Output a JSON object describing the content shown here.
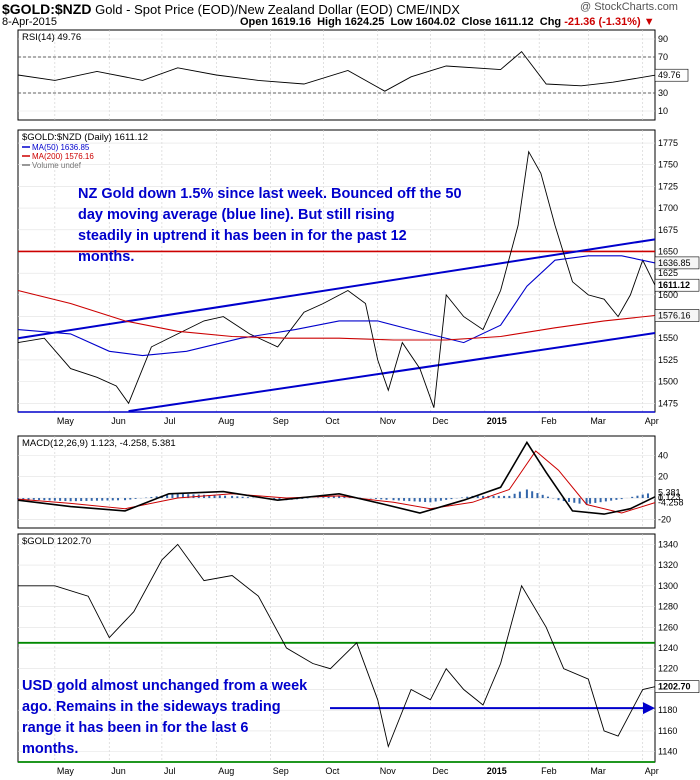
{
  "header": {
    "symbol": "$GOLD:$NZD",
    "description": "Gold - Spot Price (EOD)/New Zealand Dollar (EOD)",
    "exchange": "CME/INDX",
    "date": "8-Apr-2015",
    "open_label": "Open",
    "open": "1619.16",
    "high_label": "High",
    "high": "1624.25",
    "low_label": "Low",
    "low": "1604.02",
    "close_label": "Close",
    "close": "1611.12",
    "chg_label": "Chg",
    "chg": "-21.36 (-1.31%)",
    "brand": "@ StockCharts.com"
  },
  "x_axis": {
    "months": [
      "May",
      "Jun",
      "Jul",
      "Aug",
      "Sep",
      "Oct",
      "Nov",
      "Dec",
      "2015",
      "Feb",
      "Mar",
      "Apr"
    ]
  },
  "chart_data": [
    {
      "type": "line",
      "title": "RSI(14) 49.76",
      "ylim": [
        0,
        100
      ],
      "yticks": [
        10,
        30,
        49.76,
        70,
        90
      ],
      "ytick_labels": [
        "10",
        "30",
        "49.76",
        "70",
        "90"
      ],
      "reference_lines": [
        30,
        70
      ],
      "series": [
        {
          "name": "RSI(14)",
          "color": "#000000",
          "x": [
            "2014-04-10",
            "2014-05-01",
            "2014-05-25",
            "2014-06-20",
            "2014-07-10",
            "2014-08-01",
            "2014-08-25",
            "2014-09-20",
            "2014-10-15",
            "2014-11-05",
            "2014-11-20",
            "2014-12-10",
            "2015-01-10",
            "2015-01-22",
            "2015-02-05",
            "2015-02-25",
            "2015-03-15",
            "2015-04-08"
          ],
          "values": [
            50,
            44,
            54,
            44,
            58,
            50,
            44,
            40,
            55,
            32,
            48,
            60,
            56,
            76,
            40,
            38,
            42,
            49.76
          ]
        }
      ]
    },
    {
      "type": "line",
      "title": "$GOLD:$NZD (Daily) 1611.12",
      "ylim": [
        1465,
        1790
      ],
      "yticks": [
        1475,
        1500,
        1525,
        1550,
        1575,
        1600,
        1625,
        1650,
        1675,
        1700,
        1725,
        1750,
        1775
      ],
      "value_labels": [
        "1636.85",
        "1611.12",
        "1576.16"
      ],
      "series": [
        {
          "name": "$GOLD:$NZD (Daily) 1611.12",
          "color": "#000000",
          "x": [
            "2014-04-10",
            "2014-04-25",
            "2014-05-10",
            "2014-05-25",
            "2014-06-05",
            "2014-06-12",
            "2014-06-25",
            "2014-07-10",
            "2014-07-25",
            "2014-08-05",
            "2014-08-20",
            "2014-09-05",
            "2014-09-20",
            "2014-10-01",
            "2014-10-15",
            "2014-10-25",
            "2014-11-01",
            "2014-11-07",
            "2014-11-15",
            "2014-11-25",
            "2014-12-03",
            "2014-12-10",
            "2014-12-20",
            "2014-12-31",
            "2015-01-10",
            "2015-01-20",
            "2015-01-26",
            "2015-02-02",
            "2015-02-10",
            "2015-02-20",
            "2015-03-01",
            "2015-03-10",
            "2015-03-18",
            "2015-03-25",
            "2015-04-01",
            "2015-04-08"
          ],
          "values": [
            1545,
            1550,
            1515,
            1505,
            1495,
            1475,
            1540,
            1555,
            1570,
            1575,
            1555,
            1540,
            1580,
            1590,
            1605,
            1590,
            1525,
            1490,
            1545,
            1515,
            1470,
            1600,
            1575,
            1560,
            1605,
            1680,
            1765,
            1740,
            1680,
            1615,
            1600,
            1595,
            1575,
            1600,
            1640,
            1611.12
          ]
        },
        {
          "name": "MA(50) 1636.85",
          "color": "#0000cc",
          "x": [
            "2014-04-10",
            "2014-05-10",
            "2014-06-01",
            "2014-06-20",
            "2014-07-15",
            "2014-08-15",
            "2014-09-15",
            "2014-10-10",
            "2014-11-01",
            "2014-11-20",
            "2014-12-20",
            "2015-01-10",
            "2015-01-25",
            "2015-02-10",
            "2015-03-01",
            "2015-03-20",
            "2015-04-08"
          ],
          "values": [
            1560,
            1555,
            1535,
            1530,
            1535,
            1550,
            1560,
            1570,
            1570,
            1560,
            1545,
            1565,
            1610,
            1640,
            1645,
            1645,
            1636.85
          ]
        },
        {
          "name": "MA(200) 1576.16",
          "color": "#cc0000",
          "x": [
            "2014-04-10",
            "2014-05-10",
            "2014-06-10",
            "2014-07-10",
            "2014-08-10",
            "2014-09-10",
            "2014-10-10",
            "2014-11-10",
            "2014-12-10",
            "2015-01-10",
            "2015-02-10",
            "2015-03-10",
            "2015-04-08"
          ],
          "values": [
            1605,
            1590,
            1570,
            1558,
            1552,
            1550,
            1550,
            1548,
            1548,
            1552,
            1562,
            1570,
            1576.16
          ]
        }
      ],
      "legend": [
        "MA(50) 1636.85",
        "MA(200) 1576.16",
        "Volume undef"
      ],
      "annotation": "NZ Gold down 1.5% since last week. Bounced off the 50 day moving average (blue line). But still rising steadily in uptrend it has been in for the past 12 months.",
      "trend_channel": {
        "upper": [
          [
            "2014-04-10",
            1550
          ],
          [
            "2015-04-08",
            1664
          ]
        ],
        "lower": [
          [
            "2014-06-12",
            1466
          ],
          [
            "2015-04-08",
            1556
          ]
        ]
      },
      "horizontal_lines": [
        {
          "value": 1650,
          "color": "#cc0000"
        },
        {
          "value": 1465,
          "color": "#0000cc"
        }
      ]
    },
    {
      "type": "line",
      "title": "MACD(12,26,9) 1.123, -4.258, 5.381",
      "ylim": [
        -28,
        58
      ],
      "yticks": [
        -20,
        0,
        20,
        40
      ],
      "value_labels": [
        "5.381",
        "1.123",
        "-4.258"
      ],
      "series": [
        {
          "name": "MACD(12,26,9) 1.123",
          "color": "#000000",
          "x": [
            "2014-04-10",
            "2014-05-10",
            "2014-06-10",
            "2014-07-05",
            "2014-08-05",
            "2014-09-05",
            "2014-10-10",
            "2014-11-05",
            "2014-11-25",
            "2014-12-20",
            "2015-01-10",
            "2015-01-25",
            "2015-02-05",
            "2015-02-20",
            "2015-03-10",
            "2015-03-25",
            "2015-04-08"
          ],
          "values": [
            -2,
            -8,
            -12,
            4,
            6,
            -2,
            4,
            -6,
            -14,
            -2,
            10,
            52,
            24,
            -12,
            -15,
            -10,
            1.123
          ]
        },
        {
          "name": "-4.258",
          "color": "#cc0000",
          "x": [
            "2014-04-10",
            "2014-05-10",
            "2014-06-10",
            "2014-07-10",
            "2014-08-10",
            "2014-09-10",
            "2014-10-10",
            "2014-11-10",
            "2014-12-01",
            "2014-12-25",
            "2015-01-15",
            "2015-01-30",
            "2015-02-12",
            "2015-02-28",
            "2015-03-20",
            "2015-04-08"
          ],
          "values": [
            -1,
            -5,
            -10,
            0,
            4,
            0,
            2,
            -4,
            -10,
            -4,
            8,
            44,
            26,
            -6,
            -14,
            -4.258
          ]
        },
        {
          "name": "5.381",
          "color": "#3366aa",
          "x": [
            "2014-04-10",
            "2014-05-10",
            "2014-06-10",
            "2014-07-10",
            "2014-08-10",
            "2014-09-10",
            "2014-10-10",
            "2014-11-10",
            "2014-12-01",
            "2014-12-25",
            "2015-01-15",
            "2015-01-25",
            "2015-02-12",
            "2015-02-28",
            "2015-03-20",
            "2015-04-08"
          ],
          "values": [
            -1,
            -3,
            -2,
            4,
            2,
            -2,
            2,
            -2,
            -4,
            2,
            2,
            8,
            -2,
            -6,
            -1,
            5.381
          ]
        }
      ]
    },
    {
      "type": "line",
      "title": "$GOLD 1202.70",
      "ylim": [
        1130,
        1350
      ],
      "yticks": [
        1140,
        1160,
        1180,
        1200,
        1220,
        1240,
        1260,
        1280,
        1300,
        1320,
        1340
      ],
      "value_labels": [
        "1202.70"
      ],
      "series": [
        {
          "name": "$GOLD 1202.70",
          "color": "#000000",
          "x": [
            "2014-04-10",
            "2014-05-01",
            "2014-05-20",
            "2014-06-01",
            "2014-06-15",
            "2014-07-01",
            "2014-07-10",
            "2014-07-25",
            "2014-08-10",
            "2014-08-25",
            "2014-09-10",
            "2014-09-25",
            "2014-10-05",
            "2014-10-20",
            "2014-11-01",
            "2014-11-07",
            "2014-11-20",
            "2014-12-01",
            "2014-12-10",
            "2014-12-20",
            "2014-12-31",
            "2015-01-10",
            "2015-01-22",
            "2015-02-05",
            "2015-02-15",
            "2015-03-01",
            "2015-03-10",
            "2015-03-18",
            "2015-04-01",
            "2015-04-08"
          ],
          "values": [
            1300,
            1300,
            1290,
            1250,
            1275,
            1325,
            1340,
            1305,
            1310,
            1290,
            1240,
            1225,
            1220,
            1245,
            1190,
            1145,
            1200,
            1190,
            1220,
            1200,
            1185,
            1225,
            1300,
            1260,
            1220,
            1210,
            1160,
            1155,
            1200,
            1202.7
          ]
        }
      ],
      "annotation": "USD gold almost unchanged from a week ago. Remains in the sideways trading range it has been in for the last 6 months.",
      "horizontal_lines": [
        {
          "value": 1245,
          "color": "#008800"
        },
        {
          "value": 1130,
          "color": "#008800"
        }
      ],
      "arrow_line": {
        "value": 1182,
        "color": "#0000cc"
      }
    }
  ]
}
